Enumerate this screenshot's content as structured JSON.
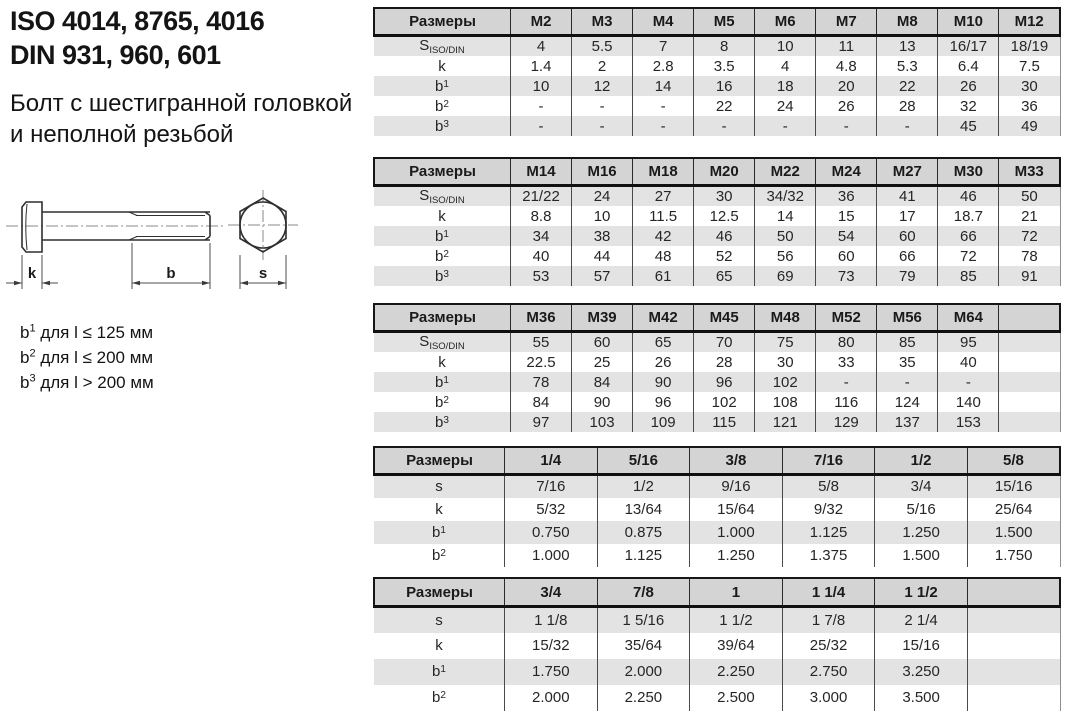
{
  "page": {
    "title_line1": "ISO 4014, 8765, 4016",
    "title_line2": "DIN 931, 960, 601",
    "subtitle_line1": "Болт с шестигранной головкой",
    "subtitle_line2": "и неполной резьбой"
  },
  "drawing": {
    "labels": {
      "k": "k",
      "b": "b",
      "s": "s"
    }
  },
  "footnotes": [
    {
      "base": "b",
      "sup": "1",
      "rest": " для l ≤ 125 мм"
    },
    {
      "base": "b",
      "sup": "2",
      "rest": " для l ≤ 200 мм"
    },
    {
      "base": "b",
      "sup": "3",
      "rest": " для l > 200 мм"
    }
  ],
  "colors": {
    "table_header_bg": "#d4d4d4",
    "table_stripe_bg": "#e3e3e3",
    "border_dark": "#161616"
  },
  "tables": [
    {
      "header_label": "Размеры",
      "columns": [
        "M2",
        "M3",
        "M4",
        "M5",
        "M6",
        "M7",
        "M8",
        "M10",
        "M12"
      ],
      "rows": [
        {
          "label": "S",
          "sub": "ISO/DIN",
          "cells": [
            "4",
            "5.5",
            "7",
            "8",
            "10",
            "11",
            "13",
            "16/17",
            "18/19"
          ]
        },
        {
          "label": "k",
          "cells": [
            "1.4",
            "2",
            "2.8",
            "3.5",
            "4",
            "4.8",
            "5.3",
            "6.4",
            "7.5"
          ]
        },
        {
          "label": "b",
          "sup": "1",
          "cells": [
            "10",
            "12",
            "14",
            "16",
            "18",
            "20",
            "22",
            "26",
            "30"
          ]
        },
        {
          "label": "b",
          "sup": "2",
          "cells": [
            "-",
            "-",
            "-",
            "22",
            "24",
            "26",
            "28",
            "32",
            "36"
          ]
        },
        {
          "label": "b",
          "sup": "3",
          "cells": [
            "-",
            "-",
            "-",
            "-",
            "-",
            "-",
            "-",
            "45",
            "49"
          ]
        }
      ]
    },
    {
      "header_label": "Размеры",
      "columns": [
        "M14",
        "M16",
        "M18",
        "M20",
        "M22",
        "M24",
        "M27",
        "M30",
        "M33"
      ],
      "rows": [
        {
          "label": "S",
          "sub": "ISO/DIN",
          "cells": [
            "21/22",
            "24",
            "27",
            "30",
            "34/32",
            "36",
            "41",
            "46",
            "50"
          ]
        },
        {
          "label": "k",
          "cells": [
            "8.8",
            "10",
            "11.5",
            "12.5",
            "14",
            "15",
            "17",
            "18.7",
            "21"
          ]
        },
        {
          "label": "b",
          "sup": "1",
          "cells": [
            "34",
            "38",
            "42",
            "46",
            "50",
            "54",
            "60",
            "66",
            "72"
          ]
        },
        {
          "label": "b",
          "sup": "2",
          "cells": [
            "40",
            "44",
            "48",
            "52",
            "56",
            "60",
            "66",
            "72",
            "78"
          ]
        },
        {
          "label": "b",
          "sup": "3",
          "cells": [
            "53",
            "57",
            "61",
            "65",
            "69",
            "73",
            "79",
            "85",
            "91"
          ]
        }
      ]
    },
    {
      "header_label": "Размеры",
      "columns": [
        "M36",
        "M39",
        "M42",
        "M45",
        "M48",
        "M52",
        "M56",
        "M64",
        ""
      ],
      "rows": [
        {
          "label": "S",
          "sub": "ISO/DIN",
          "cells": [
            "55",
            "60",
            "65",
            "70",
            "75",
            "80",
            "85",
            "95",
            ""
          ]
        },
        {
          "label": "k",
          "cells": [
            "22.5",
            "25",
            "26",
            "28",
            "30",
            "33",
            "35",
            "40",
            ""
          ]
        },
        {
          "label": "b",
          "sup": "1",
          "cells": [
            "78",
            "84",
            "90",
            "96",
            "102",
            "-",
            "-",
            "-",
            ""
          ]
        },
        {
          "label": "b",
          "sup": "2",
          "cells": [
            "84",
            "90",
            "96",
            "102",
            "108",
            "116",
            "124",
            "140",
            ""
          ]
        },
        {
          "label": "b",
          "sup": "3",
          "cells": [
            "97",
            "103",
            "109",
            "115",
            "121",
            "129",
            "137",
            "153",
            ""
          ]
        }
      ]
    },
    {
      "header_label": "Размеры",
      "columns": [
        "1/4",
        "5/16",
        "3/8",
        "7/16",
        "1/2",
        "5/8"
      ],
      "rows": [
        {
          "label": "s",
          "cells": [
            "7/16",
            "1/2",
            "9/16",
            "5/8",
            "3/4",
            "15/16"
          ]
        },
        {
          "label": "k",
          "cells": [
            "5/32",
            "13/64",
            "15/64",
            "9/32",
            "5/16",
            "25/64"
          ]
        },
        {
          "label": "b",
          "sup": "1",
          "cells": [
            "0.750",
            "0.875",
            "1.000",
            "1.125",
            "1.250",
            "1.500"
          ]
        },
        {
          "label": "b",
          "sup": "2",
          "cells": [
            "1.000",
            "1.125",
            "1.250",
            "1.375",
            "1.500",
            "1.750"
          ]
        }
      ]
    },
    {
      "header_label": "Размеры",
      "columns": [
        "3/4",
        "7/8",
        "1",
        "1 1/4",
        "1 1/2",
        ""
      ],
      "rows": [
        {
          "label": "s",
          "cells": [
            "1 1/8",
            "1 5/16",
            "1 1/2",
            "1 7/8",
            "2 1/4",
            ""
          ]
        },
        {
          "label": "k",
          "cells": [
            "15/32",
            "35/64",
            "39/64",
            "25/32",
            "15/16",
            ""
          ]
        },
        {
          "label": "b",
          "sup": "1",
          "cells": [
            "1.750",
            "2.000",
            "2.250",
            "2.750",
            "3.250",
            ""
          ]
        },
        {
          "label": "b",
          "sup": "2",
          "cells": [
            "2.000",
            "2.250",
            "2.500",
            "3.000",
            "3.500",
            ""
          ]
        }
      ]
    }
  ]
}
